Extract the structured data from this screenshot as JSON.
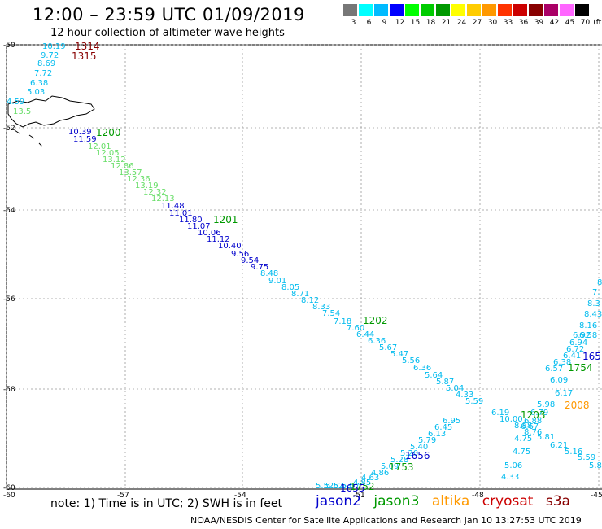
{
  "header": {
    "title": "12:00 – 23:59 UTC 01/09/2019",
    "subtitle": "12 hour collection of altimeter wave heights"
  },
  "colorbar": {
    "colors": [
      "#777777",
      "#00ffff",
      "#00bbff",
      "#0000ff",
      "#00ff00",
      "#00cc00",
      "#009900",
      "#ffff00",
      "#ffcc00",
      "#ff9900",
      "#ff3300",
      "#cc0000",
      "#880000",
      "#aa0066",
      "#ff66ff",
      "#000000"
    ],
    "ticks": [
      "3",
      "6",
      "9",
      "12",
      "15",
      "18",
      "21",
      "24",
      "27",
      "30",
      "33",
      "36",
      "39",
      "42",
      "45",
      "70"
    ],
    "unit": "(ft)"
  },
  "axes": {
    "lon_labels": [
      "-60",
      "-57",
      "-54",
      "-51",
      "-48",
      "-45"
    ],
    "lat_labels": [
      "-50",
      "-52",
      "-54",
      "-56",
      "-58",
      "-60"
    ]
  },
  "satellites": {
    "jason2": "#0000cc",
    "jason3": "#009900",
    "altika": "#ff9900",
    "cryosat": "#cc0000",
    "s3a": "#880000",
    "cyan": "#00bbee",
    "lightgreen": "#66dd66"
  },
  "time_labels": [
    {
      "text": "1314",
      "sat": "s3a"
    },
    {
      "text": "1315",
      "sat": "s3a"
    },
    {
      "text": "1200",
      "sat": "jason3"
    },
    {
      "text": "1201",
      "sat": "jason3"
    },
    {
      "text": "1202",
      "sat": "jason3"
    },
    {
      "text": "1203",
      "sat": "jason3"
    },
    {
      "text": "1754",
      "sat": "jason3"
    },
    {
      "text": "1753",
      "sat": "jason3"
    },
    {
      "text": "1752",
      "sat": "jason3"
    },
    {
      "text": "1656",
      "sat": "jason2"
    },
    {
      "text": "1655",
      "sat": "jason2"
    },
    {
      "text": "165",
      "sat": "jason2"
    },
    {
      "text": "2008",
      "sat": "altika"
    }
  ],
  "track_a": {
    "color_cyan": [
      "10.19",
      "9.72",
      "8.69",
      "7.72",
      "6.38",
      "5.03"
    ],
    "green": [
      "12.01",
      "12.05",
      "13.12",
      "12.86",
      "13.57",
      "12.36",
      "13.19",
      "12.32",
      "12.13"
    ],
    "blue": [
      "10.39",
      "11.59",
      "11.48",
      "11.01",
      "11.80",
      "11.07",
      "10.06",
      "11.12",
      "10.40",
      "9.56",
      "9.54",
      "9.75"
    ],
    "cyan_after": [
      "8.48",
      "9.01",
      "8.05",
      "8.71",
      "8.12",
      "8.33",
      "7.54",
      "7.18",
      "7.60",
      "6.44",
      "6.36",
      "5.67",
      "5.47",
      "5.56",
      "6.36",
      "5.64",
      "5.87",
      "5.04",
      "4.33",
      "5.59"
    ]
  },
  "track_b": {
    "values": [
      "8",
      "7.",
      "8.3",
      "8.43",
      "8.16",
      "6.92",
      "6.58",
      "6.94",
      "6.72",
      "6.41",
      "6.38",
      "6.57",
      "6.09",
      "6.17",
      "5.98",
      "6.79",
      "6.88",
      "6.67",
      "6.19",
      "10.00",
      "8.88",
      "8.76",
      "6.21",
      "5.16",
      "5.59",
      "5.8",
      "4.75",
      "5.81",
      "4.75",
      "5.06",
      "4.33"
    ]
  },
  "track_c": {
    "values": [
      "6.95",
      "6.45",
      "6.13",
      "5.79",
      "5.40",
      "5.20",
      "5.28",
      "5.09",
      "4.86",
      "4.63",
      "4.85",
      "5.57",
      "5.63",
      "5.62",
      "5.52"
    ]
  },
  "footer": {
    "note": "note: 1) Time is in UTC; 2) SWH is in feet",
    "legend": [
      "jason2",
      "jason3",
      "altika",
      "cryosat",
      "s3a"
    ],
    "credit": "NOAA/NESDIS Center for Satellite Applications and Research    Jan 10 13:27:53 UTC 2019"
  }
}
